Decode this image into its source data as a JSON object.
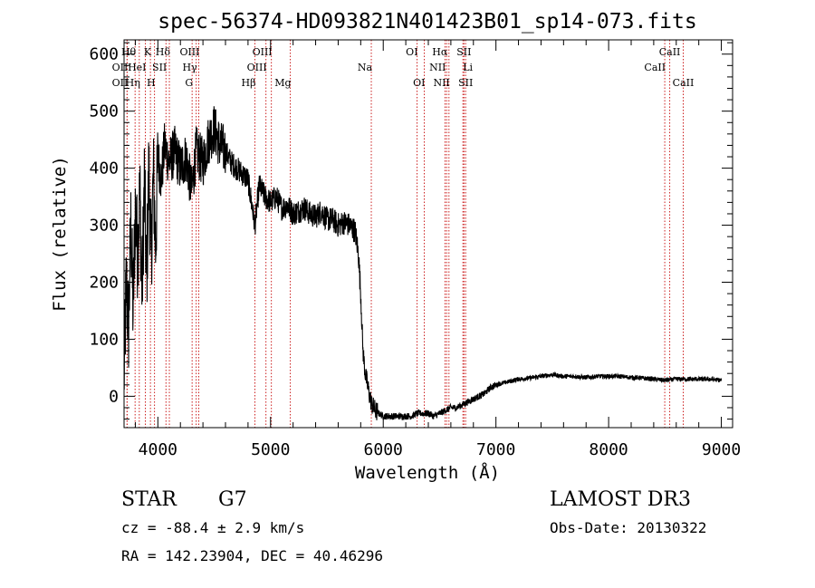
{
  "chart_data": {
    "type": "line",
    "title": "spec-56374-HD093821N401423B01_sp14-073.fits",
    "xlabel": "Wavelength (Å)",
    "ylabel": "Flux (relative)",
    "xlim": [
      3700,
      9100
    ],
    "ylim": [
      -55,
      625
    ],
    "x_ticks": [
      4000,
      5000,
      6000,
      7000,
      8000,
      9000
    ],
    "y_ticks": [
      0,
      100,
      200,
      300,
      400,
      500,
      600
    ],
    "line_color": "#000000",
    "marker_color": "#cc2020",
    "series": [
      {
        "name": "flux",
        "x": [
          3700,
          3720,
          3740,
          3760,
          3780,
          3800,
          3820,
          3840,
          3860,
          3880,
          3900,
          3920,
          3940,
          3960,
          3980,
          4000,
          4030,
          4060,
          4100,
          4150,
          4200,
          4250,
          4300,
          4340,
          4400,
          4450,
          4500,
          4550,
          4600,
          4650,
          4700,
          4750,
          4800,
          4861,
          4900,
          4950,
          5000,
          5050,
          5100,
          5150,
          5200,
          5250,
          5300,
          5350,
          5400,
          5450,
          5500,
          5550,
          5600,
          5650,
          5700,
          5750,
          5780,
          5800,
          5820,
          5840,
          5860,
          5880,
          5900,
          5930,
          5960,
          6000,
          6050,
          6100,
          6150,
          6200,
          6250,
          6300,
          6350,
          6400,
          6450,
          6500,
          6550,
          6600,
          6650,
          6700,
          6750,
          6800,
          6850,
          6900,
          6950,
          7000,
          7100,
          7200,
          7300,
          7400,
          7500,
          7600,
          7700,
          7800,
          7900,
          8000,
          8100,
          8200,
          8300,
          8400,
          8500,
          8600,
          8700,
          8800,
          8900,
          9000
        ],
        "y": [
          30,
          200,
          120,
          300,
          150,
          330,
          250,
          360,
          180,
          380,
          200,
          400,
          240,
          390,
          260,
          420,
          380,
          440,
          410,
          430,
          400,
          420,
          360,
          430,
          410,
          450,
          470,
          440,
          430,
          410,
          400,
          390,
          380,
          300,
          370,
          350,
          340,
          350,
          330,
          335,
          320,
          325,
          330,
          320,
          315,
          325,
          310,
          310,
          300,
          305,
          300,
          290,
          250,
          180,
          80,
          40,
          20,
          0,
          -15,
          -25,
          -30,
          -35,
          -35,
          -35,
          -35,
          -35,
          -35,
          -30,
          -30,
          -30,
          -35,
          -30,
          -25,
          -20,
          -20,
          -15,
          -10,
          -5,
          0,
          5,
          15,
          20,
          25,
          30,
          32,
          35,
          38,
          35,
          35,
          33,
          35,
          35,
          35,
          33,
          32,
          30,
          28,
          30,
          30,
          30,
          30,
          28
        ]
      }
    ],
    "spectral_lines": [
      {
        "wl": 3727,
        "label": "OII",
        "row": 1,
        "anchor": "end"
      },
      {
        "wl": 3727,
        "label": "OII",
        "row": 2,
        "anchor": "end"
      },
      {
        "wl": 3798,
        "label": "Hθ",
        "row": 0,
        "anchor": "end"
      },
      {
        "wl": 3835,
        "label": "Hη",
        "row": 2,
        "anchor": "end"
      },
      {
        "wl": 3889,
        "label": "HeI",
        "row": 1,
        "anchor": "end"
      },
      {
        "wl": 3934,
        "label": "K",
        "row": 0,
        "anchor": "end"
      },
      {
        "wl": 3970,
        "label": "H",
        "row": 2,
        "anchor": "end"
      },
      {
        "wl": 4072,
        "label": "SII",
        "row": 1,
        "anchor": "end"
      },
      {
        "wl": 4102,
        "label": "Hδ",
        "row": 0,
        "anchor": "end"
      },
      {
        "wl": 4304,
        "label": "G",
        "row": 2,
        "anchor": "end"
      },
      {
        "wl": 4340,
        "label": "Hγ",
        "row": 1,
        "anchor": "end"
      },
      {
        "wl": 4363,
        "label": "OIII",
        "row": 0,
        "anchor": "end"
      },
      {
        "wl": 4861,
        "label": "Hβ",
        "row": 2,
        "anchor": "end"
      },
      {
        "wl": 4959,
        "label": "OIII",
        "row": 1,
        "anchor": "end"
      },
      {
        "wl": 5007,
        "label": "OIII",
        "row": 0,
        "anchor": "end"
      },
      {
        "wl": 5175,
        "label": "Mg",
        "row": 2,
        "anchor": "end"
      },
      {
        "wl": 5894,
        "label": "Na",
        "row": 1,
        "anchor": "end"
      },
      {
        "wl": 6300,
        "label": "OI",
        "row": 0,
        "anchor": "end"
      },
      {
        "wl": 6364,
        "label": "OI",
        "row": 2,
        "anchor": "end"
      },
      {
        "wl": 6548,
        "label": "NII",
        "row": 1,
        "anchor": "end"
      },
      {
        "wl": 6563,
        "label": "Hα",
        "row": 0,
        "anchor": "end"
      },
      {
        "wl": 6583,
        "label": "NII",
        "row": 2,
        "anchor": "end"
      },
      {
        "wl": 6707,
        "label": "Li",
        "row": 1,
        "anchor": "start"
      },
      {
        "wl": 6716,
        "label": "SII",
        "row": 0,
        "anchor": "middle"
      },
      {
        "wl": 6731,
        "label": "SII",
        "row": 2,
        "anchor": "middle"
      },
      {
        "wl": 8498,
        "label": "CaII",
        "row": 1,
        "anchor": "end"
      },
      {
        "wl": 8542,
        "label": "CaII",
        "row": 0,
        "anchor": "middle"
      },
      {
        "wl": 8662,
        "label": "CaII",
        "row": 2,
        "anchor": "middle"
      }
    ]
  },
  "info": {
    "object_class": "STAR",
    "subclass": "G7",
    "redshift": "cz = -88.4 ± 2.9 km/s",
    "coords": "RA = 142.23904, DEC =  40.46296",
    "survey": "LAMOST DR3",
    "obs_date": "Obs-Date: 20130322"
  }
}
